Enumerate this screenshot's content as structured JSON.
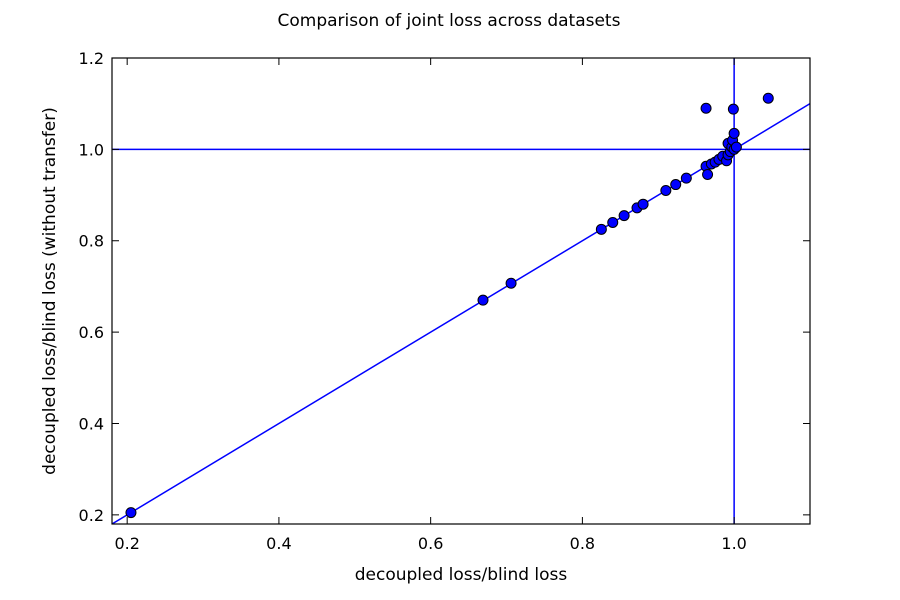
{
  "chart_data": {
    "type": "scatter",
    "title": "Comparison of joint loss across datasets",
    "xlabel": "decoupled loss/blind loss",
    "ylabel": "decoupled loss/blind loss (without transfer)",
    "xlim": [
      0.18,
      1.1
    ],
    "ylim": [
      0.18,
      1.2
    ],
    "xticks": [
      {
        "value": 0.2,
        "label": "0.2"
      },
      {
        "value": 0.4,
        "label": "0.4"
      },
      {
        "value": 0.6,
        "label": "0.6"
      },
      {
        "value": 0.8,
        "label": "0.8"
      },
      {
        "value": 1.0,
        "label": "1.0"
      }
    ],
    "yticks": [
      {
        "value": 0.2,
        "label": "0.2"
      },
      {
        "value": 0.4,
        "label": "0.4"
      },
      {
        "value": 0.6,
        "label": "0.6"
      },
      {
        "value": 0.8,
        "label": "0.8"
      },
      {
        "value": 1.0,
        "label": "1.0"
      },
      {
        "value": 1.2,
        "label": "1.2"
      }
    ],
    "grid": false,
    "reference_lines": {
      "diagonal": "y = x",
      "vertical_x": 1.0,
      "horizontal_y": 1.0,
      "color": "#0000ff"
    },
    "marker_color": "#0000ff",
    "points": [
      {
        "x": 0.205,
        "y": 0.205
      },
      {
        "x": 0.669,
        "y": 0.67
      },
      {
        "x": 0.706,
        "y": 0.707
      },
      {
        "x": 0.825,
        "y": 0.825
      },
      {
        "x": 0.84,
        "y": 0.84
      },
      {
        "x": 0.855,
        "y": 0.855
      },
      {
        "x": 0.872,
        "y": 0.872
      },
      {
        "x": 0.88,
        "y": 0.88
      },
      {
        "x": 0.91,
        "y": 0.91
      },
      {
        "x": 0.923,
        "y": 0.923
      },
      {
        "x": 0.937,
        "y": 0.937
      },
      {
        "x": 0.963,
        "y": 0.963
      },
      {
        "x": 0.965,
        "y": 0.945
      },
      {
        "x": 0.97,
        "y": 0.968
      },
      {
        "x": 0.975,
        "y": 0.972
      },
      {
        "x": 0.98,
        "y": 0.978
      },
      {
        "x": 0.985,
        "y": 0.985
      },
      {
        "x": 0.99,
        "y": 0.975
      },
      {
        "x": 0.992,
        "y": 0.988
      },
      {
        "x": 0.992,
        "y": 1.013
      },
      {
        "x": 0.995,
        "y": 0.995
      },
      {
        "x": 0.997,
        "y": 1.005
      },
      {
        "x": 0.998,
        "y": 1.02
      },
      {
        "x": 1.0,
        "y": 1.035
      },
      {
        "x": 1.0,
        "y": 1.0
      },
      {
        "x": 1.003,
        "y": 1.005
      },
      {
        "x": 0.963,
        "y": 1.09
      },
      {
        "x": 0.999,
        "y": 1.088
      },
      {
        "x": 1.045,
        "y": 1.112
      }
    ]
  }
}
